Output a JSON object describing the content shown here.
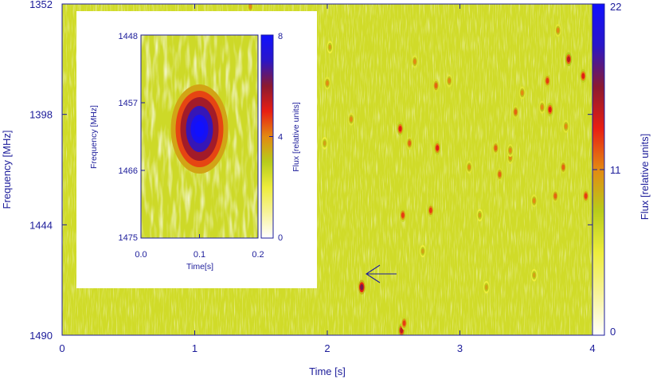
{
  "colors": {
    "axis": "#1c1c9a",
    "cmap": [
      "#ffffff",
      "#f7f39a",
      "#eded3c",
      "#b8cc1a",
      "#e38a12",
      "#e81e12",
      "#8c1a30",
      "#2a16c8",
      "#1010ff"
    ]
  },
  "chart_data": [
    {
      "type": "heatmap",
      "title": "",
      "xlabel": "Time [s]",
      "ylabel": "Frequency [MHz]",
      "colorbar_label": "Flux [relative units]",
      "xlim": [
        0,
        4
      ],
      "ylim": [
        1352,
        1490
      ],
      "y_inverted": true,
      "color_range": [
        0,
        22
      ],
      "x_ticks": [
        0,
        1,
        2,
        3,
        4
      ],
      "y_ticks": [
        1352,
        1398,
        1444,
        1490
      ],
      "colorbar_ticks": [
        0,
        11,
        22
      ],
      "background_flux": 7,
      "events": [
        {
          "t": 2.26,
          "f": 1470,
          "flux": 17,
          "annotated_with_arrow": true
        },
        {
          "t": 2.56,
          "f": 1488,
          "flux": 15
        },
        {
          "t": 2.58,
          "f": 1485,
          "flux": 13
        },
        {
          "t": 3.82,
          "f": 1375,
          "flux": 15
        },
        {
          "t": 3.68,
          "f": 1396,
          "flux": 14
        },
        {
          "t": 3.93,
          "f": 1382,
          "flux": 14
        },
        {
          "t": 3.95,
          "f": 1432,
          "flux": 13
        },
        {
          "t": 2.55,
          "f": 1404,
          "flux": 14
        },
        {
          "t": 2.83,
          "f": 1412,
          "flux": 14
        },
        {
          "t": 2.82,
          "f": 1386,
          "flux": 12
        },
        {
          "t": 2.62,
          "f": 1410,
          "flux": 12
        },
        {
          "t": 2.78,
          "f": 1438,
          "flux": 13
        },
        {
          "t": 2.57,
          "f": 1440,
          "flux": 13
        },
        {
          "t": 3.72,
          "f": 1432,
          "flux": 12
        },
        {
          "t": 3.27,
          "f": 1412,
          "flux": 12
        },
        {
          "t": 3.42,
          "f": 1397,
          "flux": 12
        },
        {
          "t": 3.3,
          "f": 1423,
          "flux": 12
        },
        {
          "t": 3.66,
          "f": 1384,
          "flux": 13
        },
        {
          "t": 3.47,
          "f": 1389,
          "flux": 11
        },
        {
          "t": 3.56,
          "f": 1434,
          "flux": 11
        },
        {
          "t": 3.07,
          "f": 1420,
          "flux": 11
        },
        {
          "t": 3.38,
          "f": 1416,
          "flux": 11
        },
        {
          "t": 3.62,
          "f": 1395,
          "flux": 11
        },
        {
          "t": 3.78,
          "f": 1420,
          "flux": 12
        },
        {
          "t": 3.8,
          "f": 1403,
          "flux": 11
        },
        {
          "t": 2.92,
          "f": 1384,
          "flux": 11
        },
        {
          "t": 2.66,
          "f": 1376,
          "flux": 11
        },
        {
          "t": 3.74,
          "f": 1363,
          "flux": 11
        },
        {
          "t": 2.0,
          "f": 1385,
          "flux": 11
        },
        {
          "t": 2.18,
          "f": 1400,
          "flux": 11
        },
        {
          "t": 1.42,
          "f": 1353,
          "flux": 11
        },
        {
          "t": 3.38,
          "f": 1413,
          "flux": 11
        },
        {
          "t": 2.02,
          "f": 1370,
          "flux": 10
        },
        {
          "t": 1.98,
          "f": 1410,
          "flux": 10
        },
        {
          "t": 3.15,
          "f": 1440,
          "flux": 10
        },
        {
          "t": 3.56,
          "f": 1465,
          "flux": 10
        },
        {
          "t": 2.72,
          "f": 1455,
          "flux": 10
        },
        {
          "t": 3.2,
          "f": 1470,
          "flux": 10
        }
      ]
    },
    {
      "type": "heatmap",
      "title": "",
      "xlabel": "Time[s]",
      "ylabel": "Frequency [MHz]",
      "colorbar_label": "Flux [relative units]",
      "xlim": [
        0,
        0.2
      ],
      "ylim": [
        1448,
        1475
      ],
      "y_inverted": true,
      "color_range": [
        0,
        8
      ],
      "x_ticks": [
        0.0,
        0.1,
        0.2
      ],
      "x_tick_labels": [
        "0.0",
        "0.1",
        "0.2"
      ],
      "y_ticks": [
        1448,
        1457,
        1466,
        1475
      ],
      "colorbar_ticks": [
        0,
        4,
        8
      ],
      "background_flux": 2.6,
      "pulse": {
        "t": 0.1,
        "f": 1460.5,
        "flux": 8
      }
    }
  ]
}
